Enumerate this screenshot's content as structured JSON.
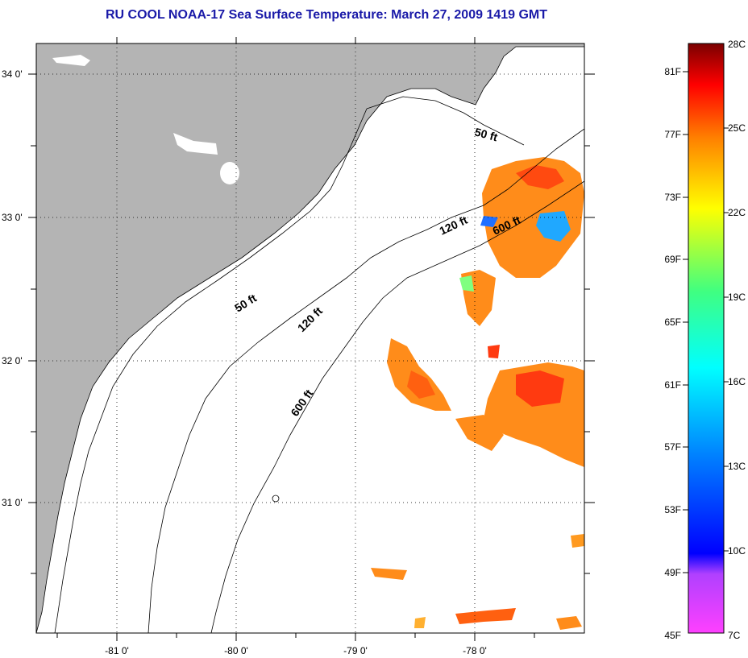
{
  "title": "RU COOL  NOAA-17  Sea Surface Temperature:  March 27, 2009 1419 GMT",
  "map": {
    "lat_ticks": [
      "34 0'",
      "33 0'",
      "32 0'",
      "31 0'"
    ],
    "lon_ticks": [
      "-81 0'",
      "-80 0'",
      "-79 0'",
      "-78 0'"
    ],
    "contours": [
      "50 ft",
      "50 ft",
      "120 ft",
      "120 ft",
      "600 ft",
      "600 ft"
    ],
    "colors": {
      "land": "#b4b4b4",
      "ocean": "#ffffff",
      "contour": "#000000"
    }
  },
  "colorbar": {
    "fahrenheit": [
      "81F",
      "77F",
      "73F",
      "69F",
      "65F",
      "61F",
      "57F",
      "53F",
      "49F",
      "45F"
    ],
    "celsius": [
      "28C",
      "25C",
      "22C",
      "19C",
      "16C",
      "13C",
      "10C",
      "7C"
    ]
  }
}
